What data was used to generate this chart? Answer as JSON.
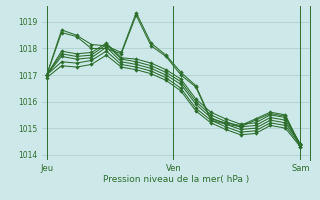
{
  "background_color": "#cce8e8",
  "grid_color": "#aacccc",
  "line_color": "#2d6e2d",
  "xlabel": "Pression niveau de la mer( hPa )",
  "ylim": [
    1013.8,
    1019.6
  ],
  "yticks": [
    1014,
    1015,
    1016,
    1017,
    1018,
    1019
  ],
  "day_labels": [
    "Jeu",
    "Ven",
    "Sam"
  ],
  "day_positions": [
    0,
    0.5,
    1.0
  ],
  "series": [
    [
      1017.0,
      1018.6,
      1018.45,
      1018.0,
      1018.0,
      1017.8,
      1019.25,
      1018.1,
      1017.7,
      1017.0,
      1016.55,
      1015.3,
      1015.15,
      1015.05,
      1015.3,
      1015.55,
      1015.45,
      1014.3
    ],
    [
      1017.0,
      1018.7,
      1018.5,
      1018.15,
      1018.1,
      1017.85,
      1019.35,
      1018.2,
      1017.75,
      1017.1,
      1016.6,
      1015.35,
      1015.2,
      1015.1,
      1015.35,
      1015.6,
      1015.5,
      1014.35
    ],
    [
      1017.0,
      1017.9,
      1017.8,
      1017.85,
      1018.2,
      1017.65,
      1017.6,
      1017.45,
      1017.2,
      1016.85,
      1016.1,
      1015.6,
      1015.35,
      1015.15,
      1015.2,
      1015.5,
      1015.4,
      1014.4
    ],
    [
      1017.0,
      1017.8,
      1017.7,
      1017.75,
      1018.15,
      1017.6,
      1017.5,
      1017.35,
      1017.1,
      1016.75,
      1016.0,
      1015.5,
      1015.25,
      1015.05,
      1015.1,
      1015.4,
      1015.3,
      1014.4
    ],
    [
      1017.0,
      1017.7,
      1017.6,
      1017.65,
      1018.05,
      1017.5,
      1017.4,
      1017.25,
      1017.0,
      1016.65,
      1015.9,
      1015.4,
      1015.15,
      1014.95,
      1015.0,
      1015.3,
      1015.2,
      1014.4
    ],
    [
      1017.0,
      1017.5,
      1017.45,
      1017.55,
      1017.9,
      1017.4,
      1017.3,
      1017.15,
      1016.9,
      1016.5,
      1015.75,
      1015.3,
      1015.05,
      1014.85,
      1014.9,
      1015.2,
      1015.1,
      1014.35
    ],
    [
      1016.9,
      1017.35,
      1017.3,
      1017.4,
      1017.75,
      1017.3,
      1017.2,
      1017.05,
      1016.8,
      1016.4,
      1015.65,
      1015.2,
      1014.95,
      1014.75,
      1014.8,
      1015.1,
      1015.0,
      1014.3
    ]
  ]
}
